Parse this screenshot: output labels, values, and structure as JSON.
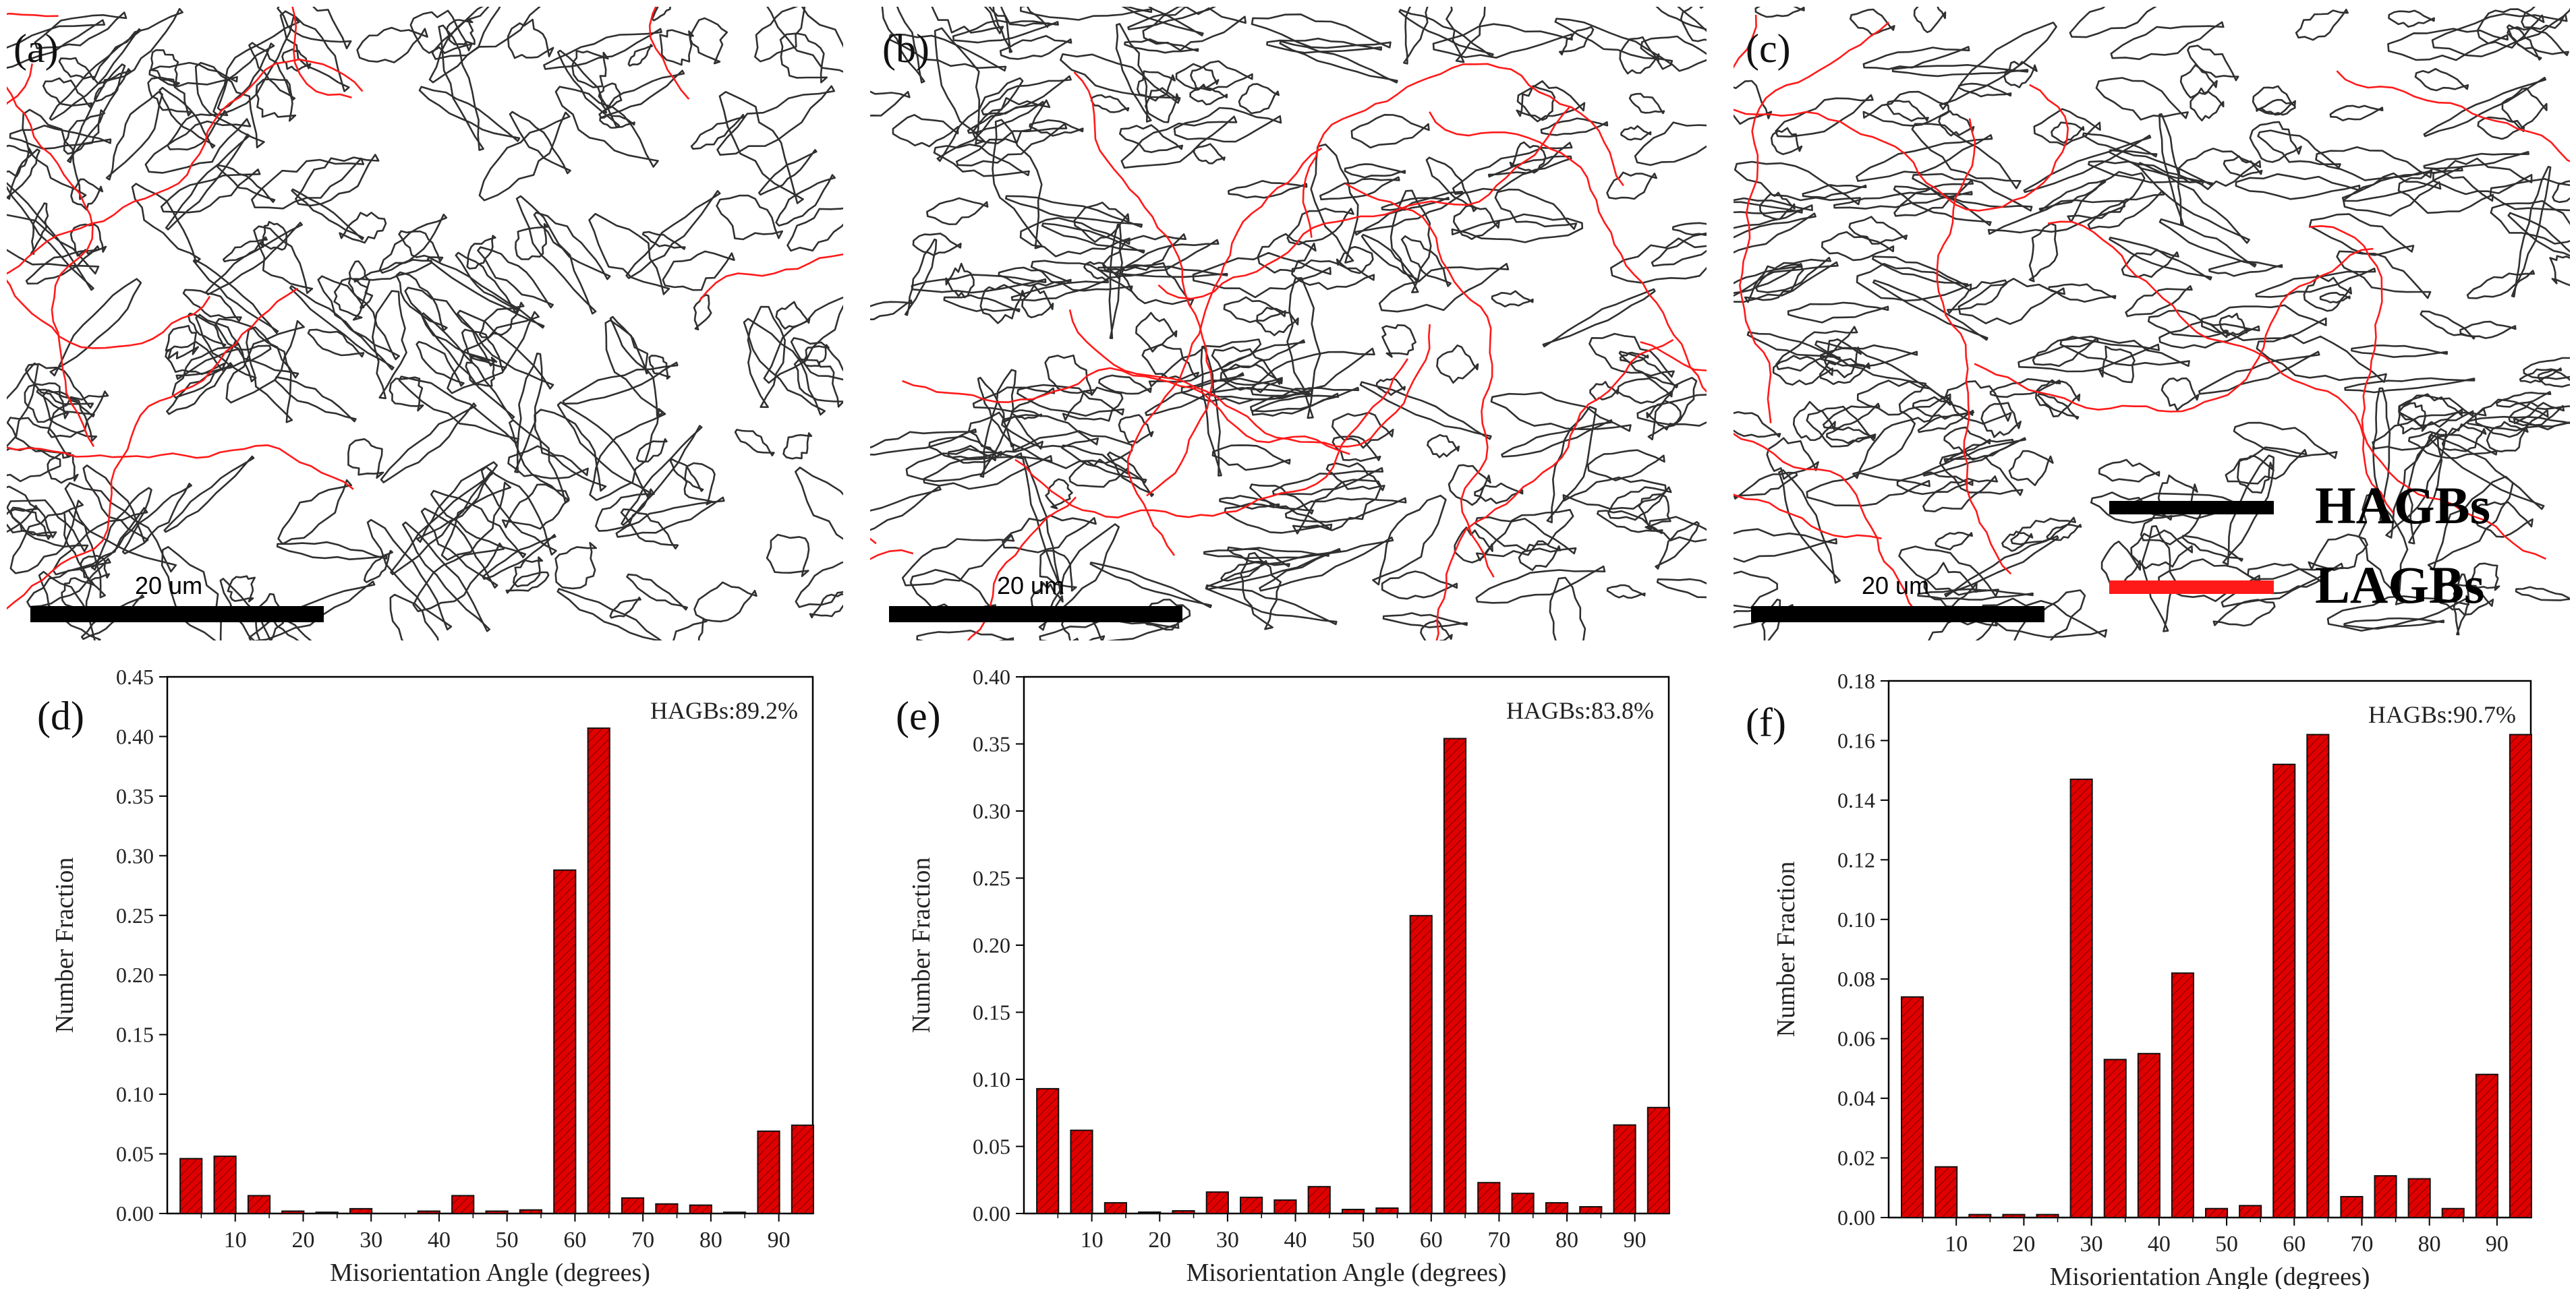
{
  "panels": {
    "a": "(a)",
    "b": "(b)",
    "c": "(c)",
    "d": "(d)",
    "e": "(e)",
    "f": "(f)"
  },
  "scale_label": "20 um",
  "legend": {
    "hagbs": {
      "label": "HAGBs",
      "color": "#000000"
    },
    "lagbs": {
      "label": "LAGBs",
      "color": "#ff1a1a"
    }
  },
  "colors": {
    "bar_fill": "#e00000",
    "bar_stroke": "#111111",
    "hagb_line": "#303030",
    "lagb_line": "#ff1a1a"
  },
  "chart_data": [
    {
      "type": "bar",
      "panel": "(d)",
      "annotation": "HAGBs:89.2%",
      "xlabel": "Misorientation Angle (degrees)",
      "ylabel": "Number Fraction",
      "xlim": [
        0,
        95
      ],
      "ylim": [
        0,
        0.45
      ],
      "xticks": [
        10,
        20,
        30,
        40,
        50,
        60,
        70,
        80,
        90
      ],
      "yticks": [
        "0.00",
        "0.05",
        "0.10",
        "0.15",
        "0.20",
        "0.25",
        "0.30",
        "0.35",
        "0.40",
        "0.45"
      ],
      "x": [
        3.5,
        8.5,
        13.5,
        18.5,
        23.5,
        28.5,
        33.5,
        38.5,
        43.5,
        48.5,
        53.5,
        58.5,
        63.5,
        68.5,
        73.5,
        78.5,
        83.5,
        88.5,
        93.5
      ],
      "values": [
        0.046,
        0.048,
        0.015,
        0.002,
        0.001,
        0.004,
        0.0,
        0.002,
        0.015,
        0.002,
        0.003,
        0.288,
        0.407,
        0.013,
        0.008,
        0.007,
        0.001,
        0.069,
        0.074
      ]
    },
    {
      "type": "bar",
      "panel": "(e)",
      "annotation": "HAGBs:83.8%",
      "xlabel": "Misorientation Angle (degrees)",
      "ylabel": "Number Fraction",
      "xlim": [
        0,
        95
      ],
      "ylim": [
        0,
        0.4
      ],
      "xticks": [
        10,
        20,
        30,
        40,
        50,
        60,
        70,
        80,
        90
      ],
      "yticks": [
        "0.00",
        "0.05",
        "0.10",
        "0.15",
        "0.20",
        "0.25",
        "0.30",
        "0.35",
        "0.40"
      ],
      "x": [
        3.5,
        8.5,
        13.5,
        18.5,
        23.5,
        28.5,
        33.5,
        38.5,
        43.5,
        48.5,
        53.5,
        58.5,
        63.5,
        68.5,
        73.5,
        78.5,
        83.5,
        88.5,
        93.5
      ],
      "values": [
        0.093,
        0.062,
        0.008,
        0.001,
        0.002,
        0.016,
        0.012,
        0.01,
        0.02,
        0.003,
        0.004,
        0.222,
        0.354,
        0.023,
        0.015,
        0.008,
        0.005,
        0.066,
        0.079
      ]
    },
    {
      "type": "bar",
      "panel": "(f)",
      "annotation": "HAGBs:90.7%",
      "xlabel": "Misorientation Angle (degrees)",
      "ylabel": "Number Fraction",
      "xlim": [
        0,
        95
      ],
      "ylim": [
        0,
        0.18
      ],
      "xticks": [
        10,
        20,
        30,
        40,
        50,
        60,
        70,
        80,
        90
      ],
      "yticks": [
        "0.00",
        "0.02",
        "0.04",
        "0.06",
        "0.08",
        "0.10",
        "0.12",
        "0.14",
        "0.16",
        "0.18"
      ],
      "x": [
        3.5,
        8.5,
        13.5,
        18.5,
        23.5,
        28.5,
        33.5,
        38.5,
        43.5,
        48.5,
        53.5,
        58.5,
        63.5,
        68.5,
        73.5,
        78.5,
        83.5,
        88.5,
        93.5
      ],
      "values": [
        0.074,
        0.017,
        0.001,
        0.001,
        0.001,
        0.147,
        0.053,
        0.055,
        0.082,
        0.003,
        0.004,
        0.152,
        0.162,
        0.007,
        0.014,
        0.013,
        0.003,
        0.048,
        0.162
      ]
    }
  ]
}
